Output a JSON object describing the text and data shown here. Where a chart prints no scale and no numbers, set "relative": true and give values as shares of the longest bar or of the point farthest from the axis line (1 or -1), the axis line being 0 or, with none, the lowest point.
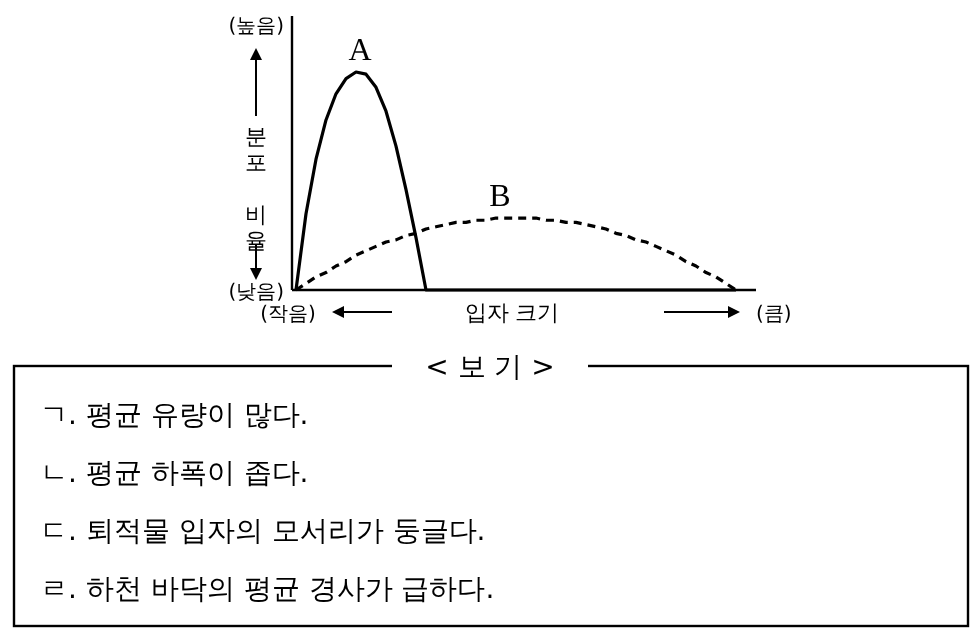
{
  "chart_data": [
    {
      "type": "line",
      "relative": true,
      "xlabel": "입자 크기",
      "ylabel": "분포 비율",
      "annotations": [
        "(높음)",
        "(낮음)",
        "(작음)",
        "(큼)"
      ],
      "categories": [
        null,
        null,
        null,
        null,
        null,
        null,
        null,
        null,
        null,
        null,
        null,
        null,
        null,
        null,
        null,
        null,
        null,
        null,
        null,
        null,
        null,
        null,
        null,
        null,
        null,
        null,
        null,
        null,
        null,
        null,
        null,
        null,
        null,
        null,
        null,
        null,
        null,
        null,
        null,
        null,
        null,
        null,
        null,
        null,
        null
      ],
      "series": [
        {
          "name": "A",
          "color": "#000000",
          "line_style": "solid",
          "values": [
            0,
            0.35,
            0.6,
            0.78,
            0.9,
            0.97,
            1,
            0.99,
            0.93,
            0.82,
            0.66,
            0.46,
            0.24,
            0,
            0,
            0,
            0,
            0,
            0,
            0,
            0,
            0,
            0,
            0,
            0,
            0,
            0,
            0,
            0,
            0,
            0,
            0,
            0,
            0,
            0,
            0,
            0,
            0,
            0,
            0,
            0,
            0,
            0,
            0,
            0
          ]
        },
        {
          "name": "B",
          "color": "#000000",
          "line_style": "dashed",
          "values": [
            0,
            0.03,
            0.06,
            0.08,
            0.11,
            0.13,
            0.16,
            0.18,
            0.2,
            0.22,
            0.23,
            0.25,
            0.26,
            0.28,
            0.29,
            0.3,
            0.31,
            0.31,
            0.32,
            0.32,
            0.33,
            0.33,
            0.33,
            0.33,
            0.33,
            0.32,
            0.32,
            0.31,
            0.31,
            0.3,
            0.29,
            0.28,
            0.26,
            0.25,
            0.23,
            0.22,
            0.2,
            0.18,
            0.16,
            0.13,
            0.11,
            0.08,
            0.06,
            0.03,
            0
          ]
        }
      ],
      "legend": false
    },
    {
      "type": "other",
      "title": "< 보 기 >",
      "annotations": [
        "ㄱ. 평균 유량이 많다.",
        "ㄴ. 평균 하폭이 좁다.",
        "ㄷ. 퇴적물 입자의 모서리가 둥글다.",
        "ㄹ. 하천 바닥의 평균 경사가 급하다."
      ]
    }
  ]
}
